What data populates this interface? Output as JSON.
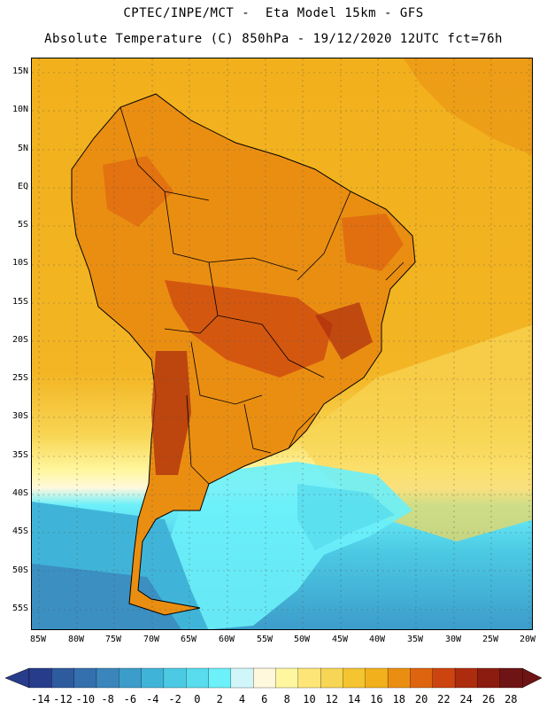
{
  "header": {
    "title_line1": "CPTEC/INPE/MCT -  Eta Model 15km - GFS",
    "title_line2": "Absolute Temperature (C) 850hPa - 19/12/2020 12UTC fct=76h"
  },
  "map": {
    "lat_labels": [
      "15N",
      "10N",
      "5N",
      "EQ",
      "5S",
      "10S",
      "15S",
      "20S",
      "25S",
      "30S",
      "35S",
      "40S",
      "45S",
      "50S",
      "55S"
    ],
    "lon_labels": [
      "85W",
      "80W",
      "75W",
      "70W",
      "65W",
      "60W",
      "55W",
      "50W",
      "45W",
      "40W",
      "35W",
      "30W",
      "25W",
      "20W"
    ],
    "extent": {
      "lon_min": -86,
      "lon_max": -19.5,
      "lat_min": -58.7,
      "lat_max": 17
    }
  },
  "colorbar": {
    "labels": [
      "-14",
      "-12",
      "-10",
      "-8",
      "-6",
      "-4",
      "-2",
      "0",
      "2",
      "4",
      "6",
      "8",
      "10",
      "12",
      "14",
      "16",
      "18",
      "20",
      "22",
      "24",
      "26",
      "28"
    ],
    "colors": [
      "#283c8c",
      "#2e5a9e",
      "#3470ad",
      "#3a86bc",
      "#3c9cca",
      "#40b4d8",
      "#4ccae4",
      "#58dcee",
      "#6cf0fa",
      "#d0f6fa",
      "#fff8dc",
      "#fff7a0",
      "#fde677",
      "#f8d655",
      "#f4c431",
      "#f2b01c",
      "#ea8e12",
      "#de6410",
      "#cc4410",
      "#ae2c0e",
      "#8c1c10",
      "#6e1414"
    ]
  }
}
